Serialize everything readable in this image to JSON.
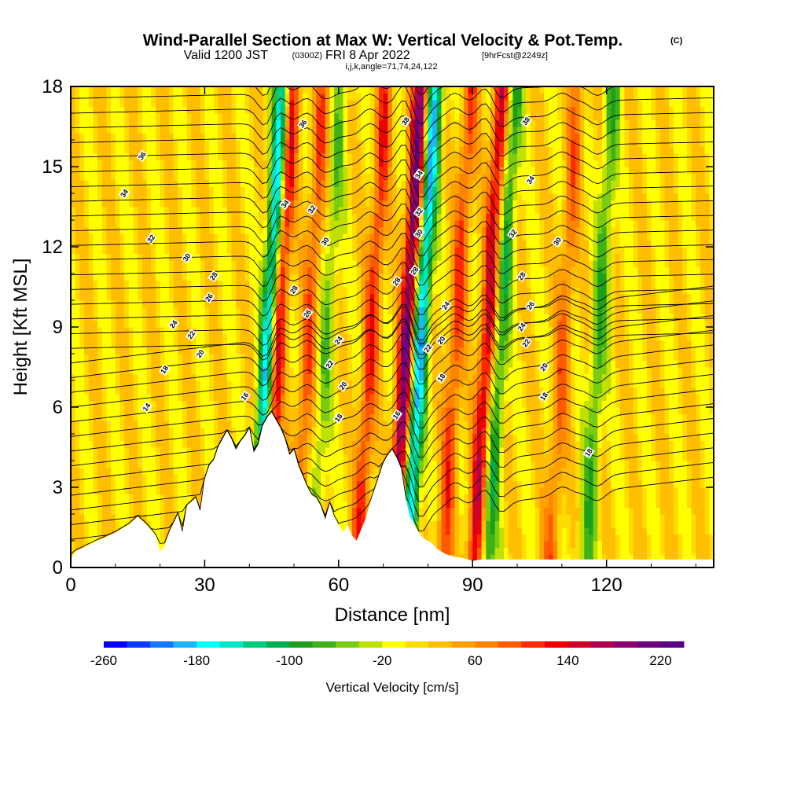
{
  "title": {
    "main": "Wind-Parallel Section at Max W: Vertical Velocity & Pot.Temp.",
    "main_mark": "(C)",
    "valid_prefix": "Valid 1200 JST",
    "valid_utc": "(0300Z)",
    "valid_date": "FRI 8 Apr 2022",
    "forecast": "[9hrFcst@2249z]",
    "indices": "i,j,k,angle=71,74,24,122"
  },
  "chart_data": {
    "type": "heatmap",
    "xlabel": "Distance [nm]",
    "ylabel": "Height [Kft MSL]",
    "xlim": [
      0,
      144
    ],
    "ylim": [
      0,
      18
    ],
    "x_ticks": [
      0,
      30,
      60,
      90,
      120
    ],
    "x_tick_labels": [
      "0",
      "30",
      "60",
      "90",
      "120"
    ],
    "y_ticks": [
      0,
      3,
      6,
      9,
      12,
      15,
      18
    ],
    "y_tick_labels": [
      "0",
      "3",
      "6",
      "9",
      "12",
      "15",
      "18"
    ],
    "colorbar": {
      "title": "Vertical Velocity [cm/s]",
      "min": -260,
      "max": 240,
      "step": 20,
      "tick_values": [
        -260,
        -180,
        -100,
        -20,
        60,
        140,
        220
      ],
      "tick_labels": [
        "-260",
        "-180",
        "-100",
        "-20",
        "60",
        "140",
        "220"
      ],
      "colors": [
        "#0000ff",
        "#0a3cff",
        "#1478ff",
        "#1eb4ff",
        "#00ffff",
        "#00e8c8",
        "#00cc80",
        "#00b050",
        "#1ca01c",
        "#3fb21a",
        "#7acc10",
        "#c0e000",
        "#ffff00",
        "#ffdc00",
        "#ffbe00",
        "#ffa200",
        "#ff8400",
        "#ff5a00",
        "#ff2800",
        "#ee0000",
        "#d00028",
        "#b00050",
        "#8c0070",
        "#6e0080",
        "#5a0088"
      ]
    },
    "vertical_velocity_bands": [
      {
        "x": 44,
        "w": -200
      },
      {
        "x": 46,
        "w": 150
      },
      {
        "x": 53,
        "w": 80
      },
      {
        "x": 57,
        "w": -60
      },
      {
        "x": 67,
        "w": 100
      },
      {
        "x": 75,
        "w": 200
      },
      {
        "x": 78,
        "w": -200
      },
      {
        "x": 86,
        "w": 90
      },
      {
        "x": 96,
        "w": -100
      },
      {
        "x": 93,
        "w": 140
      },
      {
        "x": 118,
        "w": -80
      },
      {
        "x": 110,
        "w": 70
      }
    ],
    "terrain_profile": {
      "x": [
        0,
        1,
        6,
        10,
        13,
        15,
        17,
        19,
        20,
        21,
        22,
        24,
        25,
        26,
        28,
        29,
        30,
        31,
        32,
        33,
        34,
        35,
        36,
        37,
        38,
        39,
        40,
        41,
        42,
        43,
        44,
        45,
        46,
        47,
        48,
        49,
        50,
        51,
        52,
        53,
        54,
        55,
        56,
        57,
        58,
        59,
        60,
        61,
        62,
        63,
        64,
        65,
        66,
        67,
        68,
        69,
        70,
        71,
        72,
        73,
        74,
        75,
        76,
        77,
        78,
        79,
        80,
        81,
        82,
        84,
        86,
        88,
        89,
        90,
        92,
        100,
        110,
        120,
        130,
        144
      ],
      "z": [
        0.3,
        0.6,
        1.0,
        1.3,
        1.6,
        1.9,
        1.6,
        1.2,
        0.6,
        0.8,
        1.3,
        2.0,
        1.3,
        2.3,
        2.6,
        2.1,
        3.3,
        3.8,
        4.0,
        4.5,
        4.8,
        5.1,
        4.8,
        4.4,
        4.7,
        4.9,
        5.2,
        4.3,
        4.6,
        5.3,
        5.6,
        5.8,
        5.5,
        5.2,
        4.8,
        4.2,
        4.4,
        3.8,
        3.4,
        3.0,
        2.7,
        2.6,
        2.3,
        1.8,
        2.4,
        1.9,
        1.6,
        1.3,
        1.6,
        1.2,
        1.0,
        1.4,
        1.8,
        2.4,
        2.9,
        3.4,
        3.9,
        4.2,
        4.4,
        4.1,
        3.7,
        2.6,
        1.9,
        1.6,
        1.3,
        1.1,
        1.0,
        0.9,
        0.7,
        0.5,
        0.4,
        0.35,
        0.3,
        0.25,
        0.3,
        0.3,
        0.3,
        0.3,
        0.3,
        0.3
      ]
    },
    "potential_temperature_contour_labels": [
      {
        "text": "36",
        "x": 16,
        "y": 15.4
      },
      {
        "text": "34",
        "x": 12,
        "y": 14.0
      },
      {
        "text": "32",
        "x": 18,
        "y": 12.3
      },
      {
        "text": "30",
        "x": 26,
        "y": 11.6
      },
      {
        "text": "28",
        "x": 32,
        "y": 10.9
      },
      {
        "text": "26",
        "x": 31,
        "y": 10.1
      },
      {
        "text": "24",
        "x": 23,
        "y": 9.1
      },
      {
        "text": "22",
        "x": 27,
        "y": 8.7
      },
      {
        "text": "20",
        "x": 29,
        "y": 8.0
      },
      {
        "text": "18",
        "x": 21,
        "y": 7.4
      },
      {
        "text": "16",
        "x": 39,
        "y": 6.4
      },
      {
        "text": "14",
        "x": 17,
        "y": 6.0
      },
      {
        "text": "36",
        "x": 52,
        "y": 16.6
      },
      {
        "text": "34",
        "x": 48,
        "y": 13.6
      },
      {
        "text": "32",
        "x": 54,
        "y": 13.4
      },
      {
        "text": "30",
        "x": 57,
        "y": 12.2
      },
      {
        "text": "28",
        "x": 50,
        "y": 10.4
      },
      {
        "text": "26",
        "x": 53,
        "y": 9.5
      },
      {
        "text": "24",
        "x": 60,
        "y": 8.5
      },
      {
        "text": "22",
        "x": 58,
        "y": 7.6
      },
      {
        "text": "20",
        "x": 61,
        "y": 6.8
      },
      {
        "text": "18",
        "x": 60,
        "y": 5.6
      },
      {
        "text": "38",
        "x": 75,
        "y": 16.7
      },
      {
        "text": "34",
        "x": 78,
        "y": 14.7
      },
      {
        "text": "32",
        "x": 78,
        "y": 13.3
      },
      {
        "text": "30",
        "x": 78,
        "y": 12.5
      },
      {
        "text": "28",
        "x": 73,
        "y": 10.7
      },
      {
        "text": "28",
        "x": 77,
        "y": 11.1
      },
      {
        "text": "24",
        "x": 84,
        "y": 9.8
      },
      {
        "text": "20",
        "x": 83,
        "y": 8.5
      },
      {
        "text": "22",
        "x": 80,
        "y": 8.2
      },
      {
        "text": "18",
        "x": 83,
        "y": 7.1
      },
      {
        "text": "16",
        "x": 73,
        "y": 5.7
      },
      {
        "text": "38",
        "x": 102,
        "y": 16.7
      },
      {
        "text": "34",
        "x": 103,
        "y": 14.5
      },
      {
        "text": "32",
        "x": 99,
        "y": 12.5
      },
      {
        "text": "30",
        "x": 109,
        "y": 12.2
      },
      {
        "text": "28",
        "x": 101,
        "y": 10.9
      },
      {
        "text": "26",
        "x": 103,
        "y": 9.8
      },
      {
        "text": "24",
        "x": 101,
        "y": 9.0
      },
      {
        "text": "22",
        "x": 102,
        "y": 8.4
      },
      {
        "text": "20",
        "x": 106,
        "y": 7.5
      },
      {
        "text": "18",
        "x": 106,
        "y": 6.4
      },
      {
        "text": "18",
        "x": 116,
        "y": 4.3
      }
    ]
  }
}
